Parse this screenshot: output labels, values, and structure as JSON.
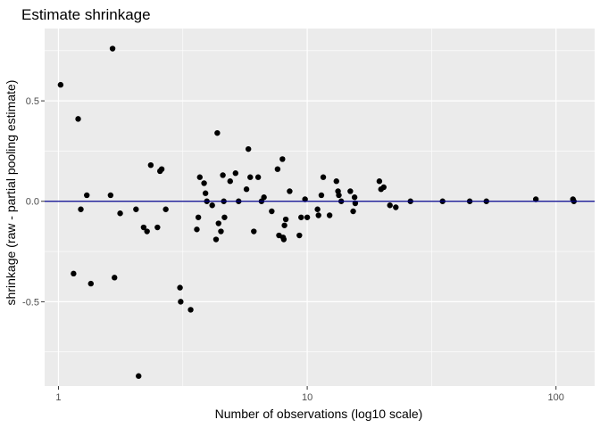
{
  "chart_data": {
    "type": "scatter",
    "title": "Estimate shrinkage",
    "xlabel": "Number of observations (log10 scale)",
    "ylabel": "shrinkage (raw - partial pooling estimate)",
    "x_scale": "log10",
    "xlim": [
      0.88,
      143
    ],
    "ylim": [
      -0.92,
      0.86
    ],
    "x_ticks": [
      {
        "value": 1,
        "label": "1"
      },
      {
        "value": 10,
        "label": "10"
      },
      {
        "value": 100,
        "label": "100"
      }
    ],
    "y_ticks": [
      {
        "value": -0.5,
        "label": "-0.5"
      },
      {
        "value": 0.0,
        "label": "0.0"
      },
      {
        "value": 0.5,
        "label": "0.5"
      }
    ],
    "reference_line": {
      "y": 0,
      "color": "#00008B"
    },
    "grid": true,
    "colors": {
      "panel": "#EBEBEB",
      "grid": "#FFFFFF",
      "points": "#000000"
    },
    "points": [
      [
        1.02,
        0.58
      ],
      [
        1.15,
        -0.36
      ],
      [
        1.2,
        0.41
      ],
      [
        1.23,
        -0.04
      ],
      [
        1.3,
        0.03
      ],
      [
        1.35,
        -0.41
      ],
      [
        1.62,
        0.03
      ],
      [
        1.65,
        0.76
      ],
      [
        1.68,
        -0.38
      ],
      [
        1.77,
        -0.06
      ],
      [
        2.05,
        -0.04
      ],
      [
        2.1,
        -0.87
      ],
      [
        2.2,
        -0.13
      ],
      [
        2.27,
        -0.15
      ],
      [
        2.35,
        0.18
      ],
      [
        2.5,
        -0.13
      ],
      [
        2.56,
        0.15
      ],
      [
        2.6,
        0.16
      ],
      [
        2.7,
        -0.04
      ],
      [
        3.08,
        -0.43
      ],
      [
        3.1,
        -0.5
      ],
      [
        3.4,
        -0.54
      ],
      [
        3.6,
        -0.14
      ],
      [
        3.65,
        -0.08
      ],
      [
        3.7,
        0.12
      ],
      [
        3.85,
        0.09
      ],
      [
        3.9,
        0.04
      ],
      [
        3.95,
        0.0
      ],
      [
        4.15,
        -0.02
      ],
      [
        4.3,
        -0.19
      ],
      [
        4.35,
        0.34
      ],
      [
        4.4,
        -0.11
      ],
      [
        4.5,
        -0.15
      ],
      [
        4.58,
        0.13
      ],
      [
        4.62,
        0.0
      ],
      [
        4.65,
        -0.08
      ],
      [
        4.9,
        0.1
      ],
      [
        5.15,
        0.14
      ],
      [
        5.3,
        0.0
      ],
      [
        5.7,
        0.06
      ],
      [
        5.8,
        0.26
      ],
      [
        5.9,
        0.12
      ],
      [
        6.1,
        -0.15
      ],
      [
        6.35,
        0.12
      ],
      [
        6.55,
        0.0
      ],
      [
        6.7,
        0.02
      ],
      [
        7.2,
        -0.05
      ],
      [
        7.6,
        0.16
      ],
      [
        7.7,
        -0.17
      ],
      [
        7.95,
        0.21
      ],
      [
        8.0,
        -0.18
      ],
      [
        8.05,
        -0.19
      ],
      [
        8.1,
        -0.12
      ],
      [
        8.2,
        -0.09
      ],
      [
        8.5,
        0.05
      ],
      [
        9.3,
        -0.17
      ],
      [
        9.45,
        -0.08
      ],
      [
        9.8,
        0.01
      ],
      [
        10.0,
        -0.08
      ],
      [
        11.0,
        -0.04
      ],
      [
        11.1,
        -0.07
      ],
      [
        11.4,
        0.03
      ],
      [
        11.6,
        0.12
      ],
      [
        12.3,
        -0.07
      ],
      [
        13.1,
        0.1
      ],
      [
        13.3,
        0.05
      ],
      [
        13.4,
        0.03
      ],
      [
        13.7,
        0.0
      ],
      [
        14.9,
        0.05
      ],
      [
        15.3,
        -0.05
      ],
      [
        15.5,
        0.02
      ],
      [
        15.6,
        -0.01
      ],
      [
        19.5,
        0.1
      ],
      [
        19.8,
        0.06
      ],
      [
        20.3,
        0.07
      ],
      [
        21.5,
        -0.02
      ],
      [
        22.7,
        -0.03
      ],
      [
        26.0,
        0.0
      ],
      [
        35.0,
        0.0
      ],
      [
        45.0,
        0.0
      ],
      [
        52.5,
        0.0
      ],
      [
        83.0,
        0.01
      ],
      [
        117.0,
        0.01
      ],
      [
        118.0,
        0.0
      ]
    ]
  }
}
